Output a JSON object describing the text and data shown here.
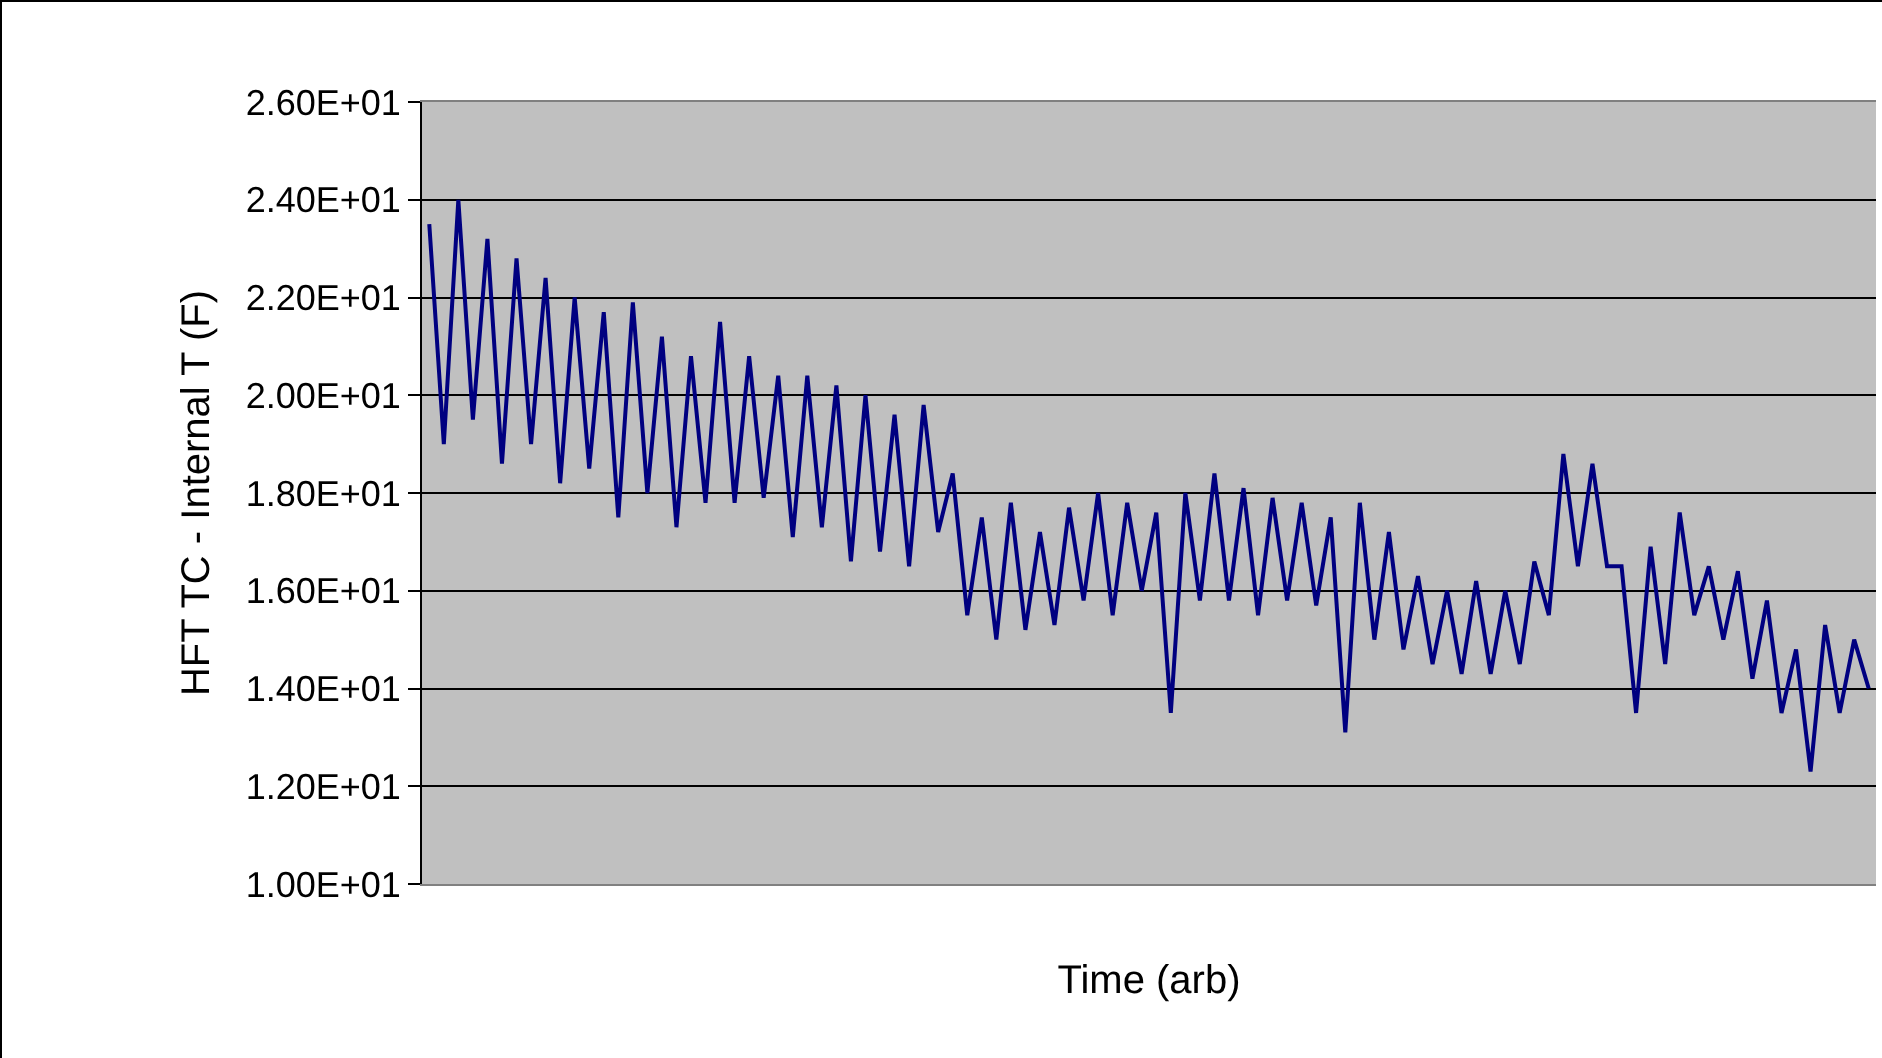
{
  "chart_data": {
    "type": "line",
    "xlabel": "Time (arb)",
    "ylabel": "HFT TC - Internal T (F)",
    "categories": [
      null,
      null,
      null,
      null,
      null,
      null,
      null,
      null,
      null,
      null,
      null,
      null,
      null,
      null,
      null,
      null,
      null,
      null,
      null,
      null,
      null,
      null,
      null,
      null,
      null,
      null,
      null,
      null,
      null,
      null,
      null,
      null,
      null,
      null,
      null,
      null,
      null,
      null,
      null,
      null,
      null,
      null,
      null,
      null,
      null,
      null,
      null,
      null,
      null,
      null,
      null,
      null,
      null,
      null,
      null,
      null,
      null,
      null,
      null,
      null,
      null,
      null,
      null,
      null,
      null,
      null,
      null,
      null,
      null,
      null,
      null,
      null,
      null,
      null,
      null,
      null,
      null,
      null,
      null,
      null,
      null,
      null,
      null,
      null,
      null,
      null,
      null,
      null,
      null,
      null,
      null,
      null,
      null,
      null,
      null,
      null,
      null,
      null,
      null,
      null
    ],
    "series": [
      {
        "color": "#000080",
        "values": [
          23.5,
          19.0,
          24.0,
          19.5,
          23.2,
          18.6,
          22.8,
          19.0,
          22.4,
          18.2,
          22.0,
          18.5,
          21.7,
          17.5,
          21.9,
          18.0,
          21.2,
          17.3,
          20.8,
          17.8,
          21.5,
          17.8,
          20.8,
          17.9,
          20.4,
          17.1,
          20.4,
          17.3,
          20.2,
          16.6,
          20.0,
          16.8,
          19.6,
          16.5,
          19.8,
          17.2,
          18.4,
          15.5,
          17.5,
          15.0,
          17.8,
          15.2,
          17.2,
          15.3,
          17.7,
          15.8,
          18.0,
          15.5,
          17.8,
          16.0,
          17.6,
          13.5,
          18.0,
          15.8,
          18.4,
          15.8,
          18.1,
          15.5,
          17.9,
          15.8,
          17.8,
          15.7,
          17.5,
          13.1,
          17.8,
          15.0,
          17.2,
          14.8,
          16.3,
          14.5,
          16.0,
          14.3,
          16.2,
          14.3,
          16.0,
          14.5,
          16.6,
          15.5,
          18.8,
          16.5,
          18.6,
          16.5,
          16.5,
          13.5,
          16.9,
          14.5,
          17.6,
          15.5,
          16.5,
          15.0,
          16.4,
          14.2,
          15.8,
          13.5,
          14.8,
          12.3,
          15.3,
          13.5,
          15.0,
          14.0
        ]
      }
    ],
    "ylim": [
      10,
      26
    ],
    "yticks": [
      {
        "value": 10,
        "label": "1.00E+01"
      },
      {
        "value": 12,
        "label": "1.20E+01"
      },
      {
        "value": 14,
        "label": "1.40E+01"
      },
      {
        "value": 16,
        "label": "1.60E+01"
      },
      {
        "value": 18,
        "label": "1.80E+01"
      },
      {
        "value": 20,
        "label": "2.00E+01"
      },
      {
        "value": 22,
        "label": "2.20E+01"
      },
      {
        "value": 24,
        "label": "2.40E+01"
      },
      {
        "value": 26,
        "label": "2.60E+01"
      }
    ],
    "grid": "y",
    "tick_labels": "y",
    "line_style": "solid",
    "marker": "none"
  }
}
